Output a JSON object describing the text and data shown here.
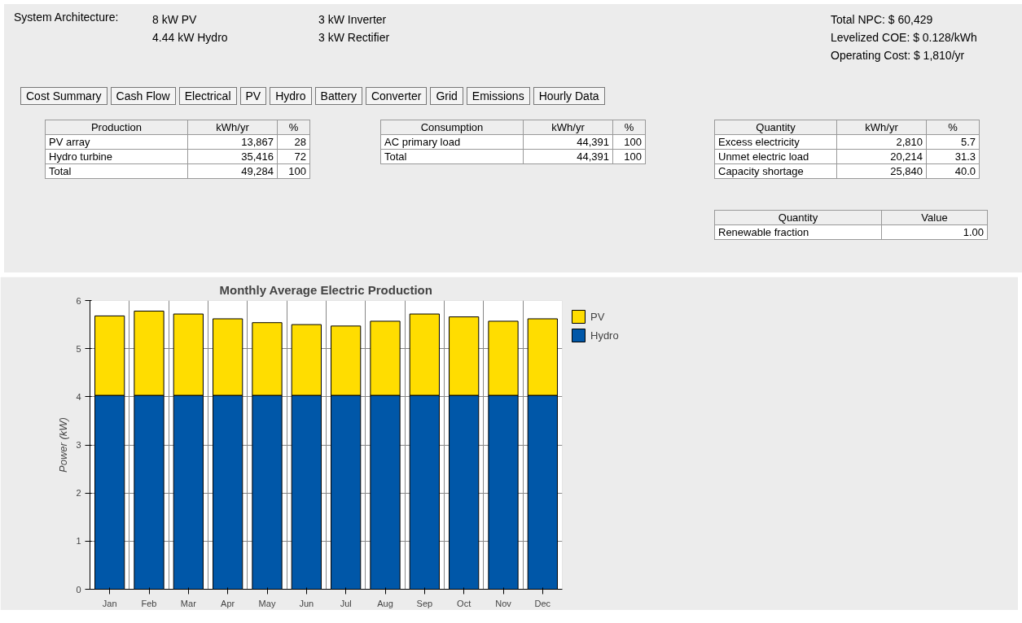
{
  "chart_data": {
    "type": "bar",
    "stacked": true,
    "title": "Monthly Average Electric Production",
    "ylabel": "Power (kW)",
    "categories": [
      "Jan",
      "Feb",
      "Mar",
      "Apr",
      "May",
      "Jun",
      "Jul",
      "Aug",
      "Sep",
      "Oct",
      "Nov",
      "Dec"
    ],
    "series": [
      {
        "name": "Hydro",
        "color": "#0057a8",
        "values": [
          4.03,
          4.03,
          4.03,
          4.03,
          4.03,
          4.03,
          4.03,
          4.03,
          4.03,
          4.03,
          4.03,
          4.03
        ]
      },
      {
        "name": "PV",
        "color": "#ffdd00",
        "values": [
          1.65,
          1.75,
          1.69,
          1.59,
          1.51,
          1.47,
          1.44,
          1.54,
          1.69,
          1.63,
          1.54,
          1.59
        ]
      }
    ],
    "ylim": [
      0,
      6
    ],
    "yticks": [
      0,
      1,
      2,
      3,
      4,
      5,
      6
    ],
    "grid": true,
    "legend": "top right",
    "annotations": [
      "System Architecture:",
      "8 kW PV",
      "4.44 kW Hydro",
      "3 kW Inverter",
      "3 kW Rectifier",
      "Total NPC: $ 60,429",
      "Levelized COE: $ 0.128/kWh",
      "Operating Cost: $ 1,810/yr",
      "Cost Summary",
      "Cash Flow",
      "Electrical",
      "PV",
      "Hydro",
      "Battery",
      "Converter",
      "Grid",
      "Emissions",
      "Hourly Data",
      "Production",
      "kWh/yr",
      "%",
      "PV array",
      "13,867",
      "28",
      "Hydro turbine",
      "35,416",
      "72",
      "Total",
      "49,284",
      "100",
      "Consumption",
      "kWh/yr",
      "%",
      "AC primary load",
      "44,391",
      "100",
      "Total",
      "44,391",
      "100",
      "Quantity",
      "kWh/yr",
      "%",
      "Excess electricity",
      "2,810",
      "5.7",
      "Unmet electric load",
      "20,214",
      "31.3",
      "Capacity shortage",
      "25,840",
      "40.0",
      "Quantity",
      "Value",
      "Renewable fraction",
      "1.00"
    ]
  }
}
